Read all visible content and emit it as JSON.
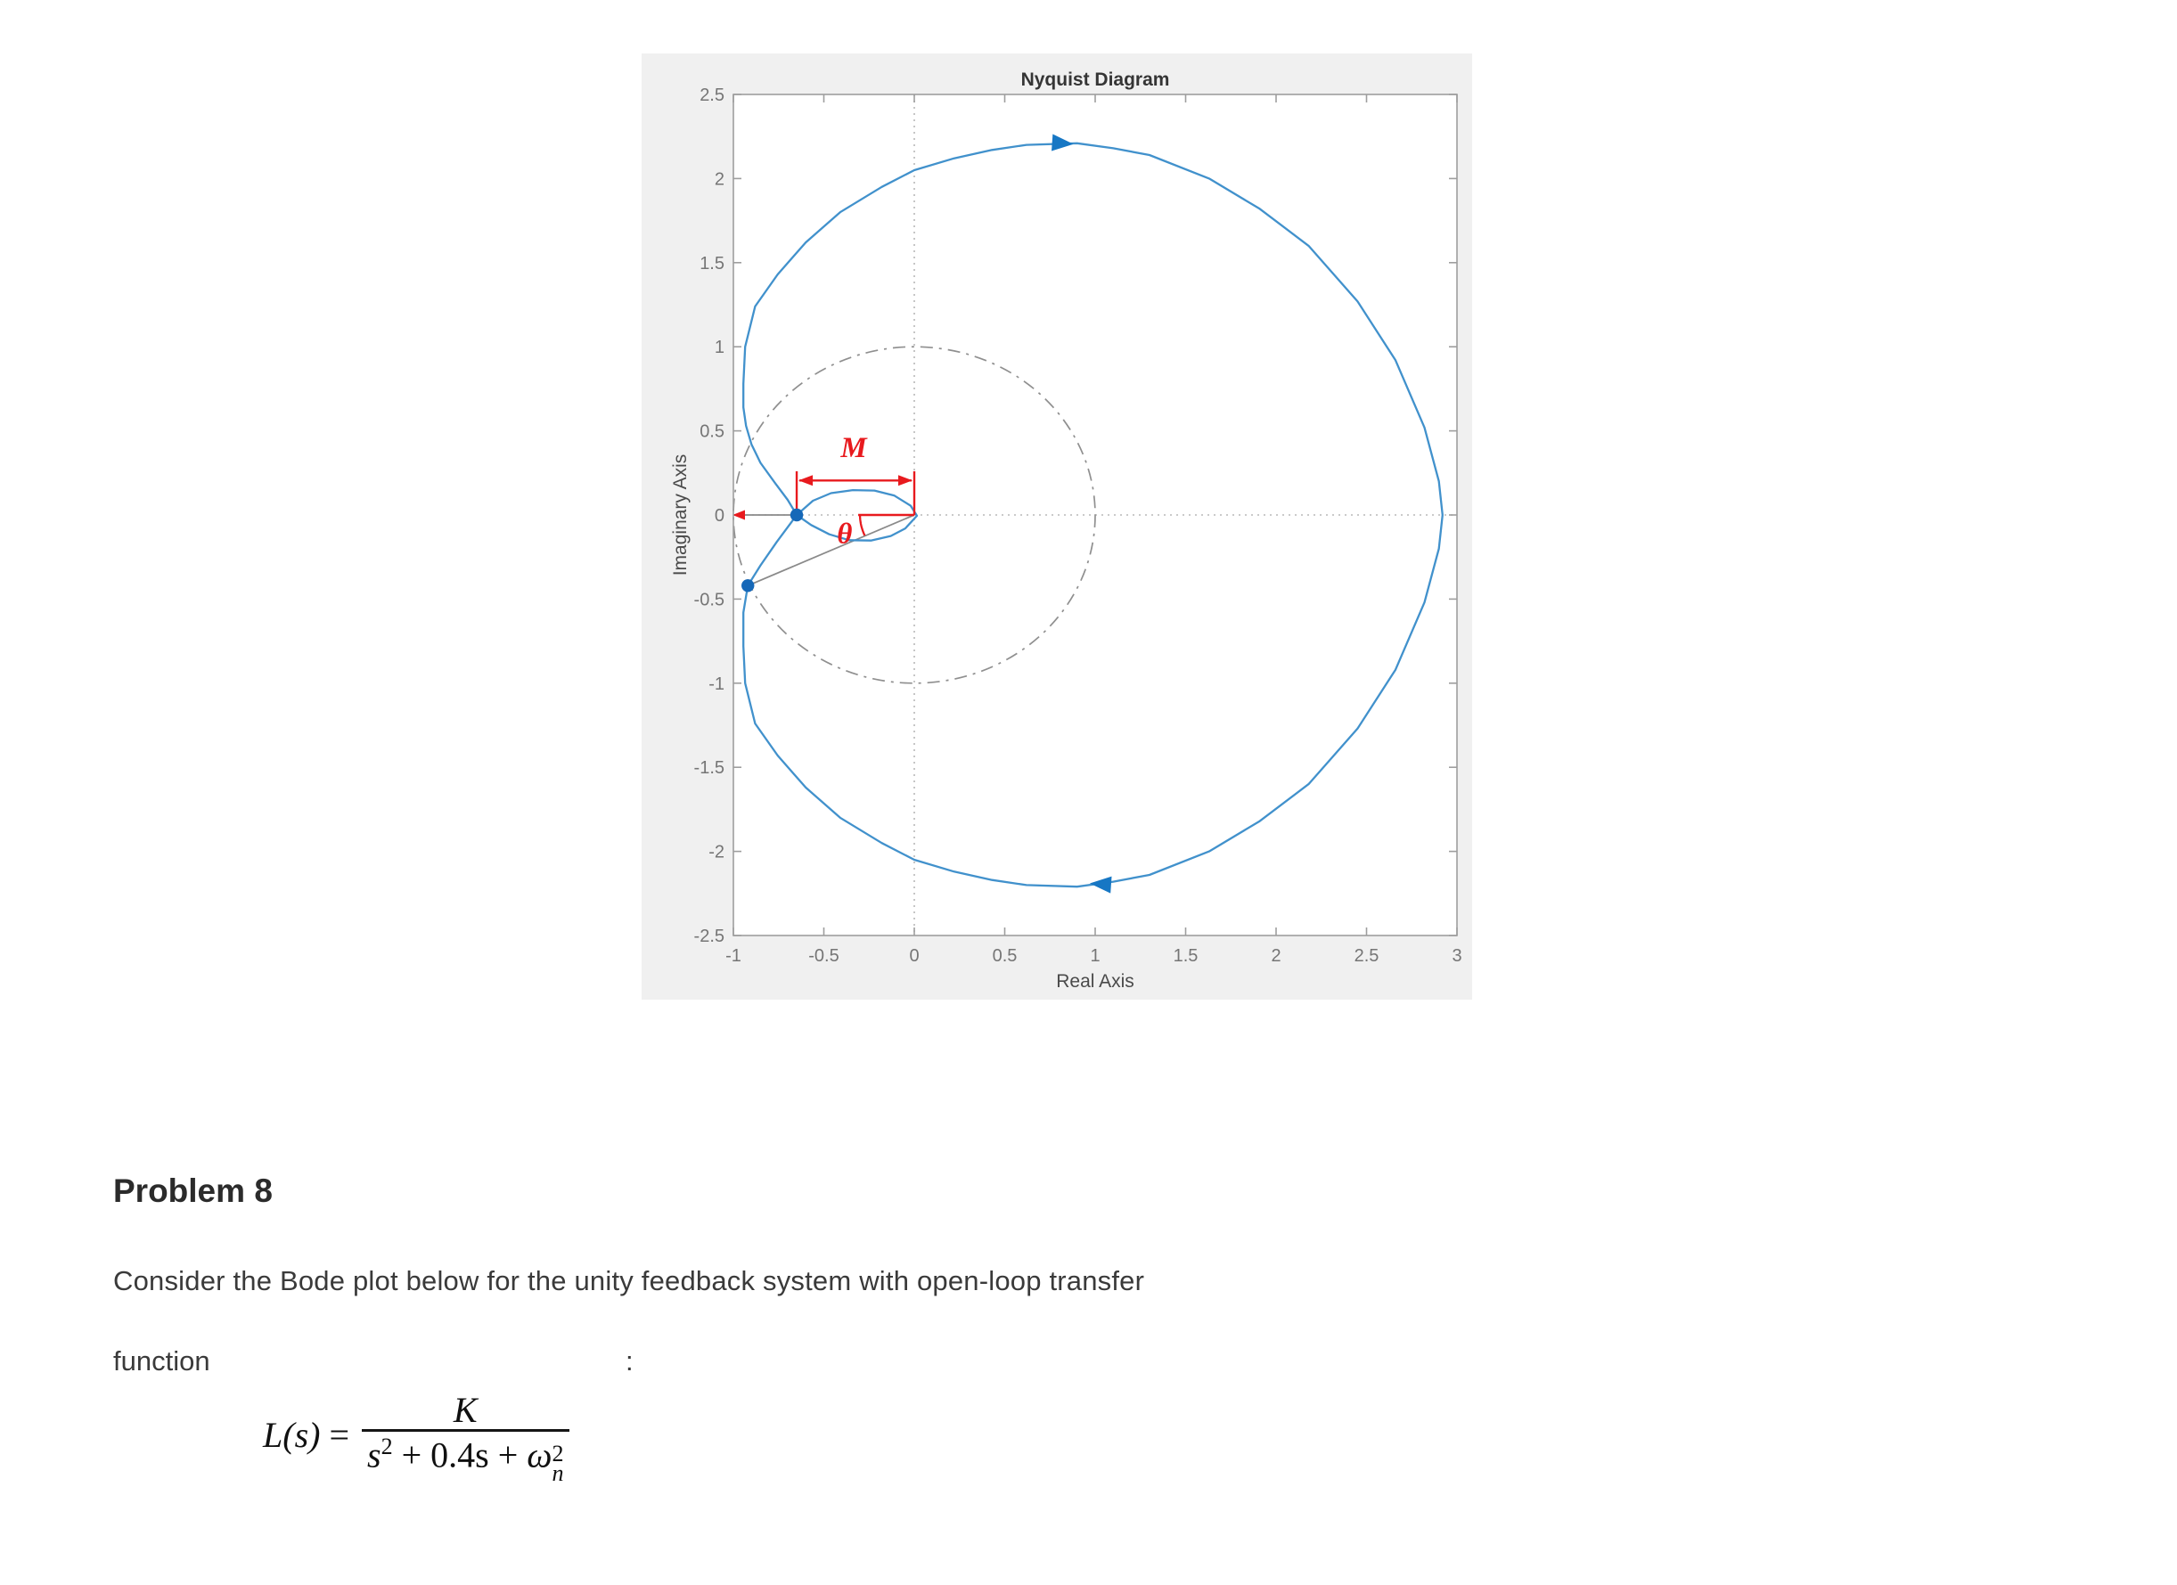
{
  "chart_data": {
    "type": "line",
    "title": "Nyquist Diagram",
    "xlabel": "Real Axis",
    "ylabel": "Imaginary Axis",
    "xlim": [
      -1,
      3
    ],
    "ylim": [
      -2.5,
      2.5
    ],
    "grid": false,
    "x_ticks": [
      {
        "v": -1,
        "label": "-1"
      },
      {
        "v": -0.5,
        "label": "-0.5"
      },
      {
        "v": 0,
        "label": "0"
      },
      {
        "v": 0.5,
        "label": "0.5"
      },
      {
        "v": 1,
        "label": "1"
      },
      {
        "v": 1.5,
        "label": "1.5"
      },
      {
        "v": 2,
        "label": "2"
      },
      {
        "v": 2.5,
        "label": "2.5"
      },
      {
        "v": 3,
        "label": "3"
      }
    ],
    "y_ticks": [
      {
        "v": 2.5,
        "label": "2.5"
      },
      {
        "v": 2,
        "label": "2"
      },
      {
        "v": 1.5,
        "label": "1.5"
      },
      {
        "v": 1,
        "label": "1"
      },
      {
        "v": 0.5,
        "label": "0.5"
      },
      {
        "v": 0,
        "label": "0"
      },
      {
        "v": -0.5,
        "label": "-0.5"
      },
      {
        "v": -1,
        "label": "-1"
      },
      {
        "v": -1.5,
        "label": "-1.5"
      },
      {
        "v": -2,
        "label": "-2"
      },
      {
        "v": -2.5,
        "label": "-2.5"
      }
    ],
    "reference_lines": {
      "vertical_x": 0,
      "horizontal_y": 0
    },
    "reference_circle": {
      "cx": 0,
      "cy": 0,
      "r": 1
    },
    "series": [
      {
        "name": "nyquist-outer-contour",
        "points": [
          [
            -0.65,
            0
          ],
          [
            -0.7,
            0.09
          ],
          [
            -0.77,
            0.19
          ],
          [
            -0.85,
            0.31
          ],
          [
            -0.9,
            0.42
          ],
          [
            -0.93,
            0.53
          ],
          [
            -0.945,
            0.64
          ],
          [
            -0.945,
            0.78
          ],
          [
            -0.935,
            1.0
          ],
          [
            -0.88,
            1.24
          ],
          [
            -0.755,
            1.43
          ],
          [
            -0.6,
            1.62
          ],
          [
            -0.41,
            1.8
          ],
          [
            -0.18,
            1.95
          ],
          [
            0.0,
            2.05
          ],
          [
            0.22,
            2.12
          ],
          [
            0.43,
            2.17
          ],
          [
            0.62,
            2.2
          ],
          [
            0.9,
            2.21
          ],
          [
            1.1,
            2.18
          ],
          [
            1.3,
            2.14
          ],
          [
            1.63,
            2.0
          ],
          [
            1.91,
            1.82
          ],
          [
            2.18,
            1.6
          ],
          [
            2.45,
            1.27
          ],
          [
            2.66,
            0.92
          ],
          [
            2.82,
            0.52
          ],
          [
            2.9,
            0.2
          ],
          [
            2.92,
            0.0
          ],
          [
            2.9,
            -0.2
          ],
          [
            2.82,
            -0.52
          ],
          [
            2.66,
            -0.92
          ],
          [
            2.45,
            -1.27
          ],
          [
            2.18,
            -1.6
          ],
          [
            1.91,
            -1.82
          ],
          [
            1.63,
            -2.0
          ],
          [
            1.3,
            -2.14
          ],
          [
            1.1,
            -2.18
          ],
          [
            0.9,
            -2.21
          ],
          [
            0.62,
            -2.2
          ],
          [
            0.43,
            -2.17
          ],
          [
            0.22,
            -2.12
          ],
          [
            0.0,
            -2.05
          ],
          [
            -0.18,
            -1.95
          ],
          [
            -0.41,
            -1.8
          ],
          [
            -0.6,
            -1.62
          ],
          [
            -0.755,
            -1.43
          ],
          [
            -0.88,
            -1.24
          ],
          [
            -0.935,
            -1.0
          ],
          [
            -0.945,
            -0.78
          ],
          [
            -0.945,
            -0.58
          ],
          [
            -0.92,
            -0.42
          ],
          [
            -0.85,
            -0.3
          ],
          [
            -0.76,
            -0.16
          ],
          [
            -0.65,
            0
          ]
        ]
      },
      {
        "name": "nyquist-inner-loop",
        "points": [
          [
            -0.65,
            0
          ],
          [
            -0.56,
            0.085
          ],
          [
            -0.46,
            0.13
          ],
          [
            -0.34,
            0.148
          ],
          [
            -0.22,
            0.145
          ],
          [
            -0.11,
            0.115
          ],
          [
            -0.02,
            0.055
          ],
          [
            0.015,
            -0.005
          ],
          [
            -0.05,
            -0.08
          ],
          [
            -0.13,
            -0.125
          ],
          [
            -0.24,
            -0.152
          ],
          [
            -0.36,
            -0.15
          ],
          [
            -0.47,
            -0.115
          ],
          [
            -0.57,
            -0.06
          ],
          [
            -0.65,
            0
          ]
        ]
      }
    ],
    "direction_arrows": [
      {
        "x": 0.88,
        "y": 2.205,
        "screen_angle_deg": 4
      },
      {
        "x": 0.97,
        "y": -2.19,
        "screen_angle_deg": 184
      }
    ],
    "annotations": {
      "magnitude_label": "M",
      "angle_label": "θ",
      "measure": {
        "x1": -0.65,
        "x2": 0,
        "arrow_y": 0.205,
        "tick_top": 0.26,
        "label_x": -0.335,
        "label_y": 0.345
      },
      "angle": {
        "vertex_x": 0,
        "vertex_y": 0,
        "ref_x": -0.31,
        "sweep_deg": 204.7,
        "radius": 0.3,
        "label_x": -0.385,
        "label_y": -0.115
      },
      "axis_arrow": {
        "x": -1,
        "y": 0
      },
      "gray_lines": [
        {
          "from": [
            -1,
            0
          ],
          "to": [
            -0.65,
            0
          ]
        },
        {
          "from": [
            0,
            0
          ],
          "to": [
            -0.92,
            -0.42
          ]
        }
      ],
      "markers": [
        {
          "x": -0.65,
          "y": 0
        },
        {
          "x": -0.92,
          "y": -0.42
        }
      ]
    },
    "colors": {
      "curve": "#4191cc",
      "marker": "#1668b8",
      "arrow": "#1777c4",
      "annotation_red": "#e81a1e",
      "annotation_gray": "#8a8a8a",
      "grid_dotted": "#b8b8b8",
      "axis": "#9e9e9e",
      "tick_label": "#757575",
      "panel_bg": "#f0f0f0"
    }
  },
  "problem": {
    "heading": "Problem 8",
    "line1": "Consider the Bode plot below for the unity feedback system with open-loop transfer",
    "line2_word": "function",
    "line2_colon": ":",
    "formula": {
      "lhs": "L(s)",
      "eq": "=",
      "numerator": "K",
      "den_s": "s",
      "den_s_sup": "2",
      "den_mid": " + 0.4s + ",
      "den_omega": "ω",
      "den_omega_sup": "2",
      "den_omega_sub": "n"
    }
  }
}
